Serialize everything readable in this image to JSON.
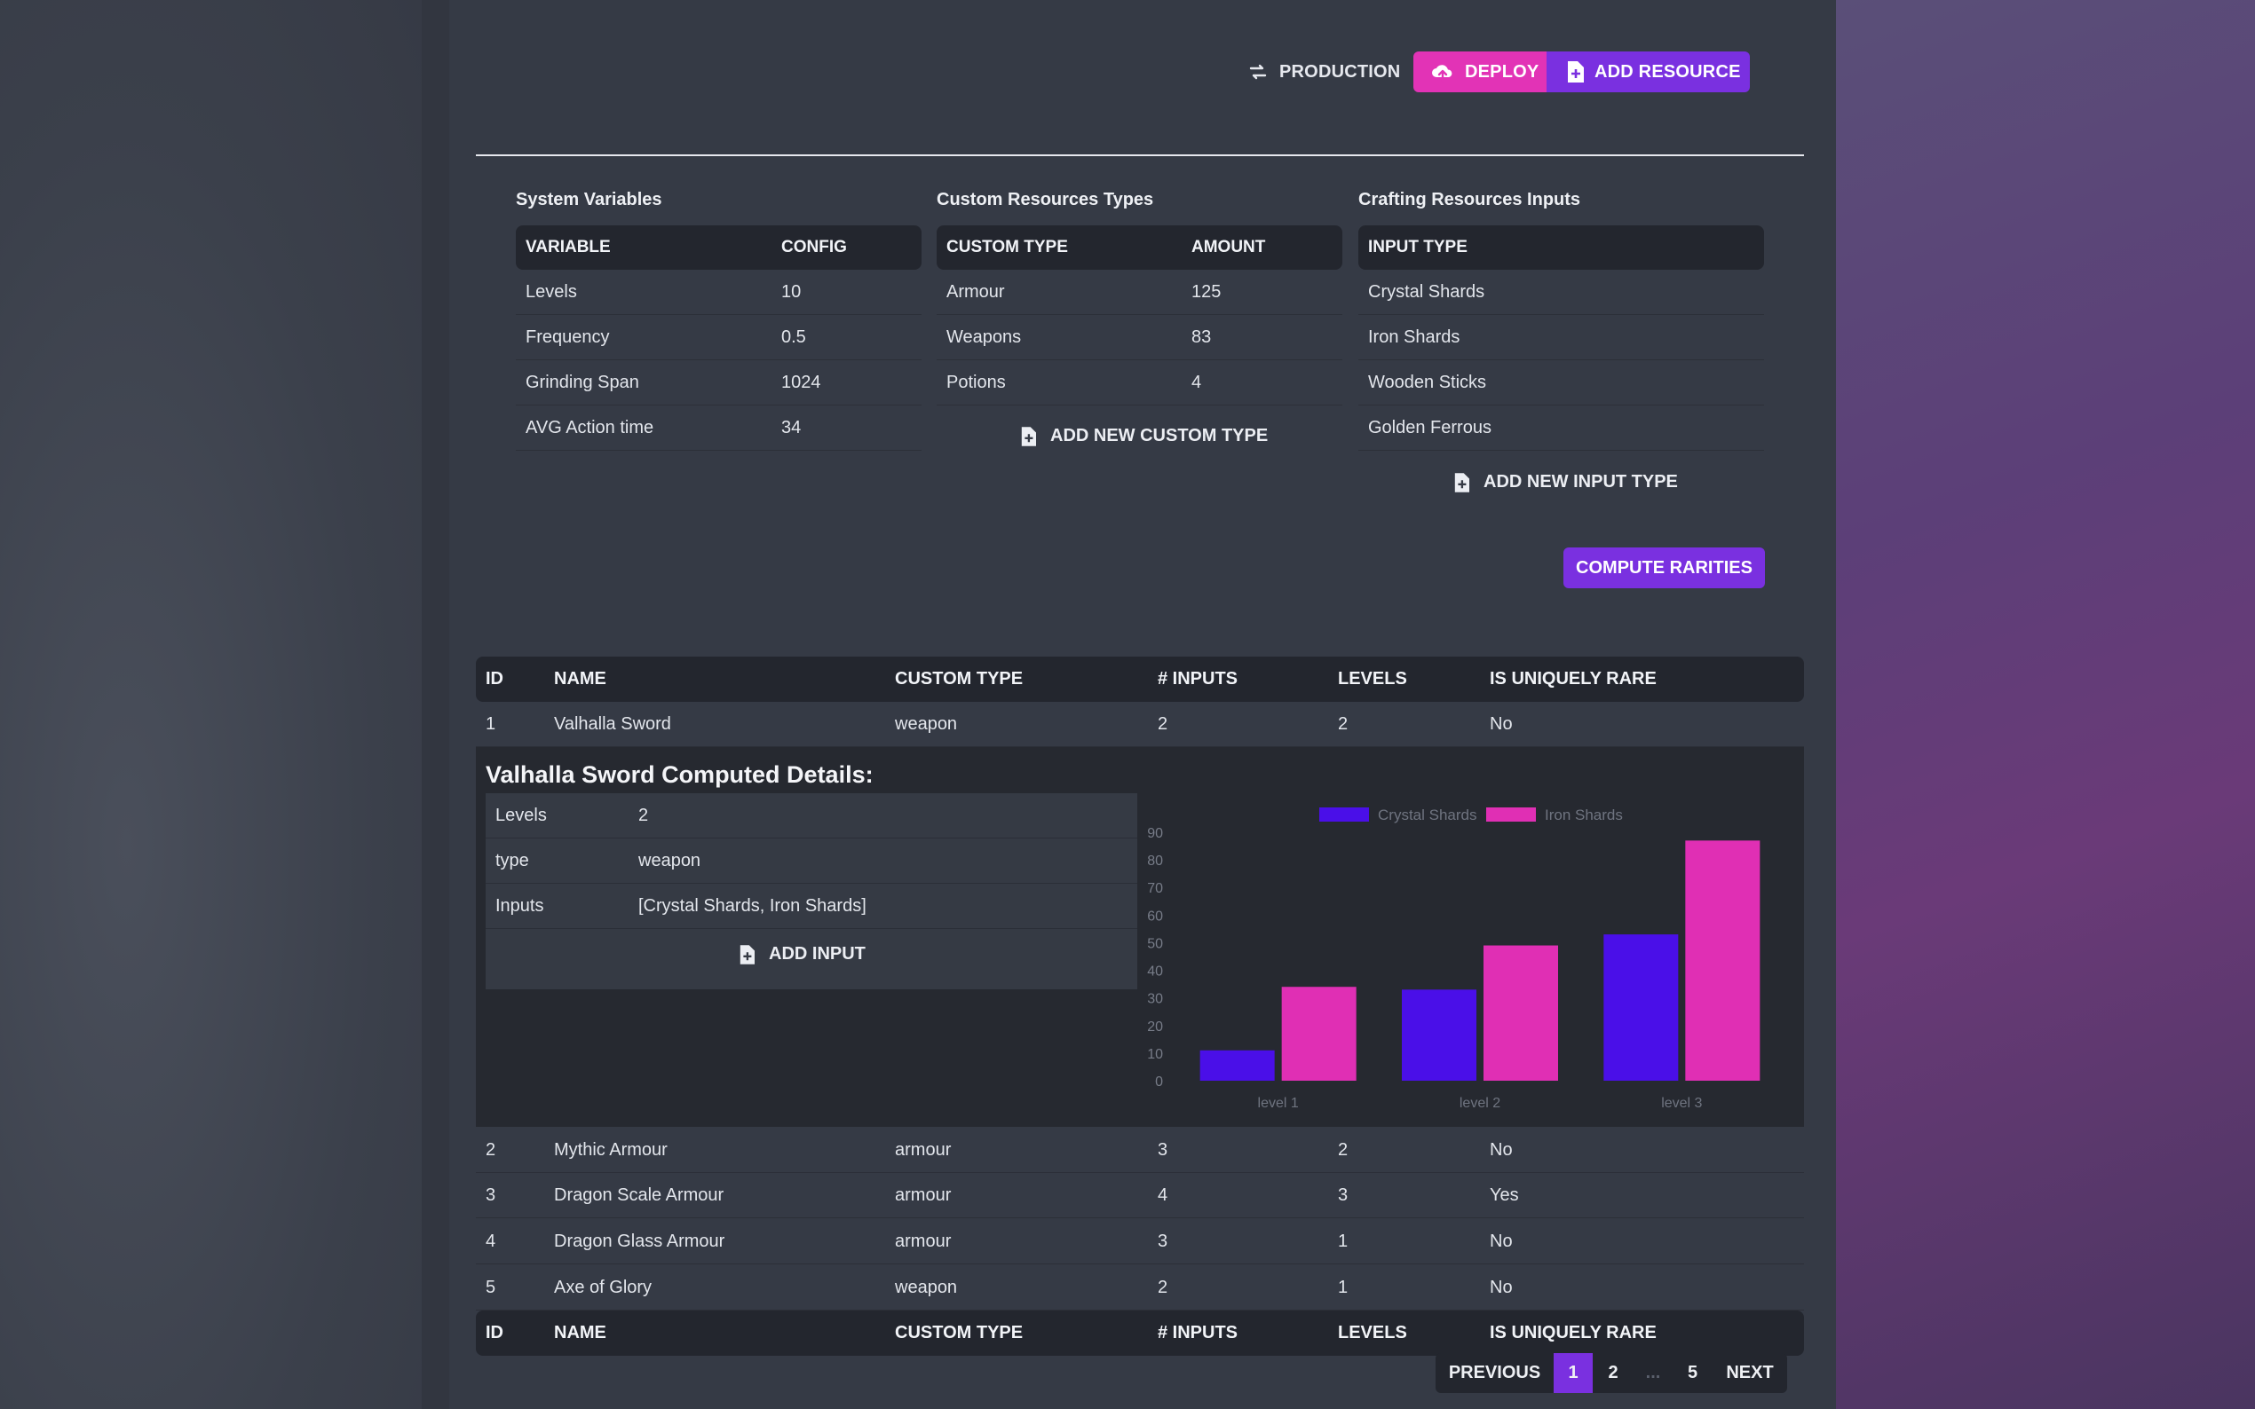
{
  "header": {
    "environment_label": "PRODUCTION",
    "deploy_label": "DEPLOY",
    "add_resource_label": "ADD RESOURCE"
  },
  "system_variables": {
    "title": "System Variables",
    "columns": [
      "VARIABLE",
      "CONFIG"
    ],
    "rows": [
      [
        "Levels",
        "10"
      ],
      [
        "Frequency",
        "0.5"
      ],
      [
        "Grinding Span",
        "1024"
      ],
      [
        "AVG Action time",
        "34"
      ]
    ]
  },
  "custom_types": {
    "title": "Custom Resources Types",
    "columns": [
      "CUSTOM TYPE",
      "AMOUNT"
    ],
    "rows": [
      [
        "Armour",
        "125"
      ],
      [
        "Weapons",
        "83"
      ],
      [
        "Potions",
        "4"
      ]
    ],
    "add_label": "ADD NEW CUSTOM TYPE"
  },
  "crafting_inputs": {
    "title": "Crafting Resources Inputs",
    "columns": [
      "INPUT TYPE"
    ],
    "rows": [
      "Crystal Shards",
      "Iron Shards",
      "Wooden Sticks",
      "Golden Ferrous"
    ],
    "add_label": "ADD NEW INPUT TYPE"
  },
  "compute_label": "COMPUTE RARITIES",
  "resources": {
    "columns": [
      "ID",
      "NAME",
      "CUSTOM TYPE",
      "# INPUTS",
      "LEVELS",
      "IS UNIQUELY RARE"
    ],
    "rows": [
      [
        "1",
        "Valhalla Sword",
        "weapon",
        "2",
        "2",
        "No"
      ],
      [
        "2",
        "Mythic Armour",
        "armour",
        "3",
        "2",
        "No"
      ],
      [
        "3",
        "Dragon Scale Armour",
        "armour",
        "4",
        "3",
        "Yes"
      ],
      [
        "4",
        "Dragon Glass Armour",
        "armour",
        "3",
        "1",
        "No"
      ],
      [
        "5",
        "Axe of Glory",
        "weapon",
        "2",
        "1",
        "No"
      ]
    ]
  },
  "details": {
    "title": "Valhalla Sword Computed Details:",
    "rows": [
      [
        "Levels",
        "2"
      ],
      [
        "type",
        "weapon"
      ],
      [
        "Inputs",
        "[Crystal Shards, Iron Shards]"
      ]
    ],
    "add_input_label": "ADD INPUT"
  },
  "chart_data": {
    "type": "bar",
    "categories": [
      "level 1",
      "level 2",
      "level 3"
    ],
    "series": [
      {
        "name": "Crystal Shards",
        "color": "#4a0fe8",
        "values": [
          11,
          33,
          53
        ]
      },
      {
        "name": "Iron Shards",
        "color": "#e02fb4",
        "values": [
          34,
          49,
          87
        ]
      }
    ],
    "ylim": [
      0,
      90
    ],
    "yticks": [
      "0",
      "10",
      "20",
      "30",
      "40",
      "50",
      "60",
      "70",
      "80",
      "90"
    ],
    "legend": "top"
  },
  "pagination": {
    "previous": "PREVIOUS",
    "pages": [
      "1",
      "2",
      "...",
      "5"
    ],
    "next": "NEXT"
  }
}
